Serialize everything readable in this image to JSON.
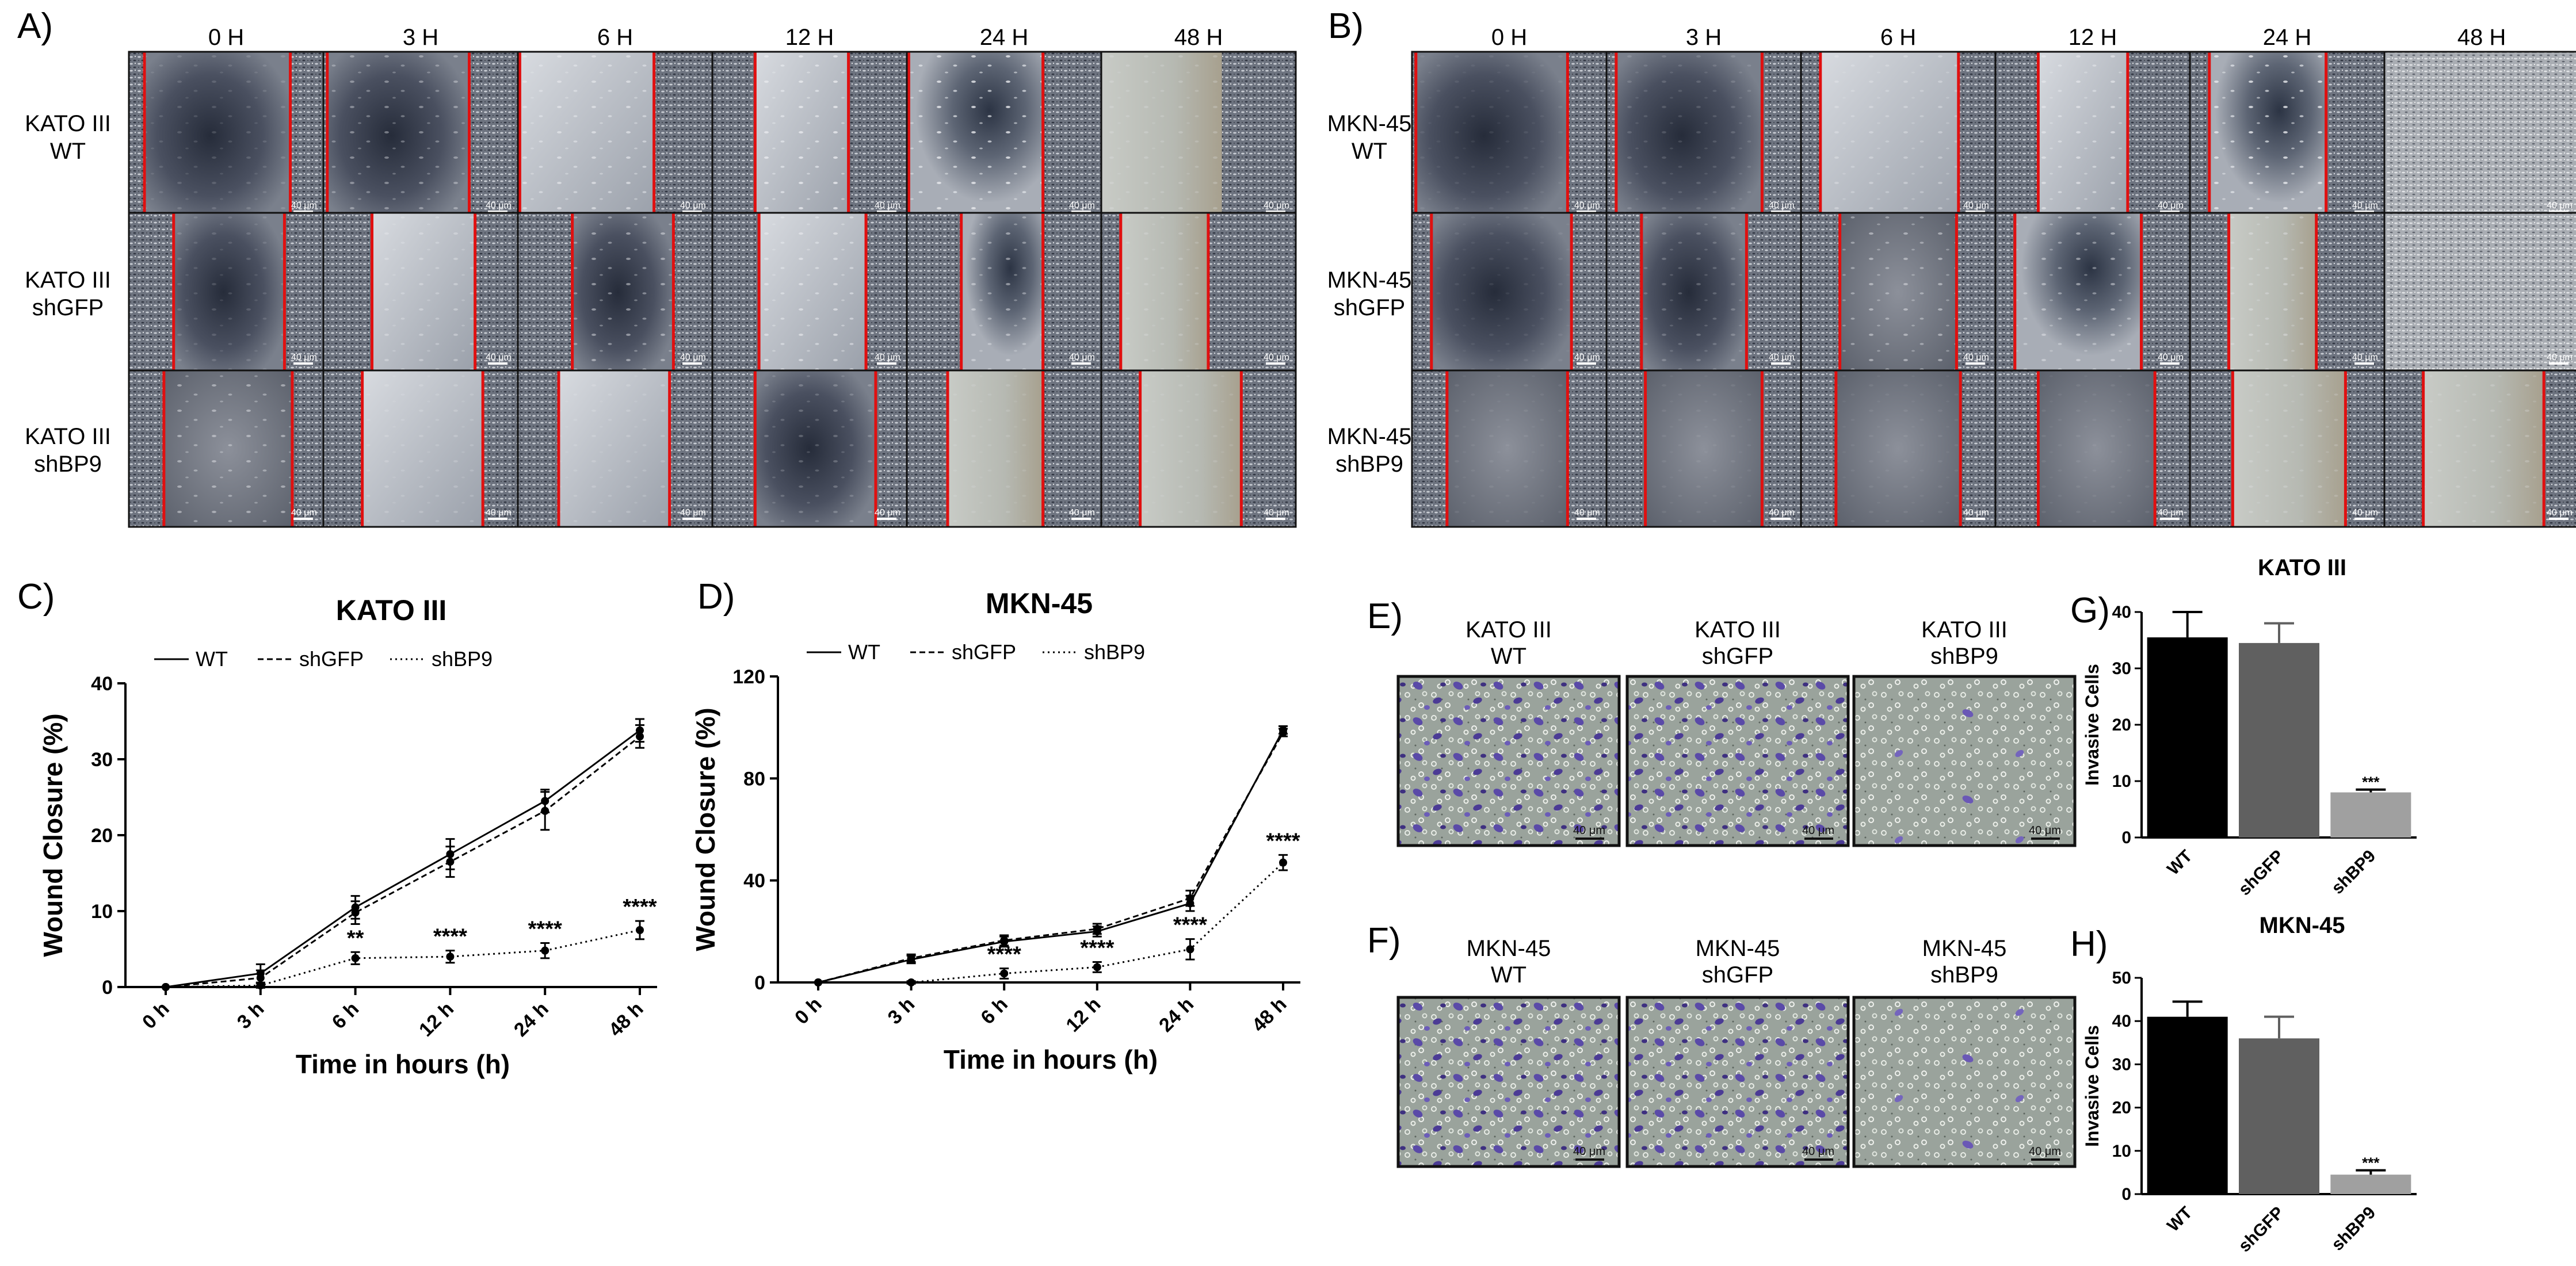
{
  "panels": {
    "a": "A)",
    "b": "B)",
    "c": "C)",
    "d": "D)",
    "e": "E)",
    "f": "F)",
    "g": "G)",
    "h": "H)"
  },
  "time_columns": [
    "0 H",
    "3 H",
    "6 H",
    "12 H",
    "24 H",
    "48 H"
  ],
  "scratch_a_rows": [
    {
      "line1": "KATO III",
      "line2": "WT"
    },
    {
      "line1": "KATO III",
      "line2": "shGFP"
    },
    {
      "line1": "KATO III",
      "line2": "shBP9"
    }
  ],
  "scratch_b_rows": [
    {
      "line1": "MKN-45",
      "line2": "WT"
    },
    {
      "line1": "MKN-45",
      "line2": "shGFP"
    },
    {
      "line1": "MKN-45",
      "line2": "shBP9"
    }
  ],
  "microscope_scale_label": "40 μm",
  "invasion_e_titles": [
    {
      "line1": "KATO III",
      "line2": "WT"
    },
    {
      "line1": "KATO III",
      "line2": "shGFP"
    },
    {
      "line1": "KATO III",
      "line2": "shBP9"
    }
  ],
  "invasion_f_titles": [
    {
      "line1": "MKN-45",
      "line2": "WT"
    },
    {
      "line1": "MKN-45",
      "line2": "shGFP"
    },
    {
      "line1": "MKN-45",
      "line2": "shBP9"
    }
  ],
  "invasion_scale_label": "40 μm",
  "colors": {
    "scratch_line": "#e01010",
    "bar_wt": "#000000",
    "bar_shgfp": "#606060",
    "bar_shbp9": "#a0a0a0",
    "stain": "#5a4aa8"
  },
  "chart_data": [
    {
      "type": "line",
      "title": "KATO III",
      "xlabel": "Time in hours (h)",
      "ylabel": "Wound Closure (%)",
      "categories": [
        "0 h",
        "3 h",
        "6 h",
        "12 h",
        "24 h",
        "48 h"
      ],
      "ylim": [
        0,
        40
      ],
      "yticks": [
        0,
        10,
        20,
        30,
        40
      ],
      "legend_position": "top",
      "series": [
        {
          "name": "WT",
          "values": [
            0,
            1.8,
            10.5,
            17.5,
            24.5,
            33.8
          ],
          "errors": [
            0,
            1.2,
            1.5,
            2.0,
            1.5,
            1.5
          ]
        },
        {
          "name": "shGFP",
          "values": [
            0,
            1.2,
            9.8,
            16.5,
            23.2,
            33.0
          ],
          "errors": [
            0,
            1.0,
            1.5,
            2.0,
            2.5,
            1.5
          ]
        },
        {
          "name": "shBP9",
          "values": [
            0,
            0.2,
            3.8,
            4.0,
            4.8,
            7.5
          ],
          "errors": [
            0,
            0.3,
            0.8,
            0.8,
            1.0,
            1.2
          ]
        }
      ],
      "annotations": [
        {
          "category": "6 h",
          "text": "**"
        },
        {
          "category": "12 h",
          "text": "****"
        },
        {
          "category": "24 h",
          "text": "****"
        },
        {
          "category": "48 h",
          "text": "****"
        }
      ]
    },
    {
      "type": "line",
      "title": "MKN-45",
      "xlabel": "Time in hours (h)",
      "ylabel": "Wound Closure (%)",
      "categories": [
        "0 h",
        "3 h",
        "6 h",
        "12 h",
        "24 h",
        "48 h"
      ],
      "ylim": [
        0,
        120
      ],
      "yticks": [
        0,
        40,
        80,
        120
      ],
      "legend_position": "top",
      "series": [
        {
          "name": "WT",
          "values": [
            0,
            9,
            16,
            20,
            31,
            99
          ],
          "errors": [
            0,
            1.5,
            2,
            2,
            3,
            1.5
          ]
        },
        {
          "name": "shGFP",
          "values": [
            0,
            9.5,
            16.5,
            21,
            33,
            98
          ],
          "errors": [
            0,
            1.5,
            2,
            2,
            3,
            1.5
          ]
        },
        {
          "name": "shBP9",
          "values": [
            0,
            0,
            3.5,
            6,
            13,
            47
          ],
          "errors": [
            0,
            0.5,
            2,
            2,
            4,
            3
          ]
        }
      ],
      "annotations": [
        {
          "category": "6 h",
          "text": "****"
        },
        {
          "category": "12 h",
          "text": "****"
        },
        {
          "category": "24 h",
          "text": "****"
        },
        {
          "category": "48 h",
          "text": "****"
        }
      ]
    },
    {
      "type": "bar",
      "title": "KATO III",
      "xlabel": "",
      "ylabel": "Invasive Cells",
      "categories": [
        "WT",
        "shGFP",
        "shBP9"
      ],
      "values": [
        35.5,
        34.5,
        8
      ],
      "errors": [
        4.5,
        3.5,
        0.5
      ],
      "ylim": [
        0,
        40
      ],
      "yticks": [
        0,
        10,
        20,
        30,
        40
      ],
      "annotations": [
        {
          "category": "shBP9",
          "text": "***"
        }
      ]
    },
    {
      "type": "bar",
      "title": "MKN-45",
      "xlabel": "",
      "ylabel": "Invasive Cells",
      "categories": [
        "WT",
        "shGFP",
        "shBP9"
      ],
      "values": [
        41,
        36,
        4.5
      ],
      "errors": [
        3.5,
        5,
        1
      ],
      "ylim": [
        0,
        50
      ],
      "yticks": [
        0,
        10,
        20,
        30,
        40,
        50
      ],
      "annotations": [
        {
          "category": "shBP9",
          "text": "***"
        }
      ]
    }
  ]
}
